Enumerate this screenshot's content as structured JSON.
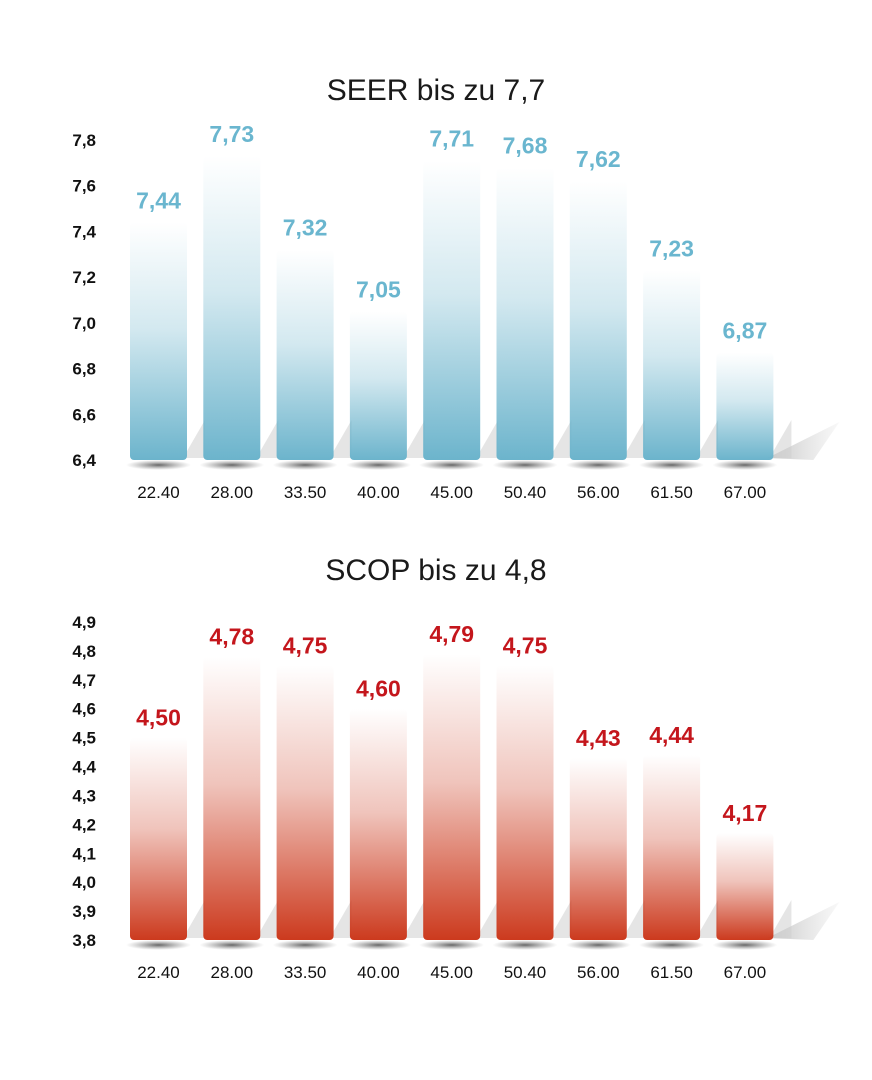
{
  "chart_data": [
    {
      "type": "bar",
      "title": "SEER bis zu 7,7",
      "categories": [
        "22.40",
        "28.00",
        "33.50",
        "40.00",
        "45.00",
        "50.40",
        "56.00",
        "61.50",
        "67.00"
      ],
      "values": [
        7.44,
        7.73,
        7.32,
        7.05,
        7.71,
        7.68,
        7.62,
        7.23,
        6.87
      ],
      "value_labels": [
        "7,44",
        "7,73",
        "7,32",
        "7,05",
        "7,71",
        "7,68",
        "7,62",
        "7,23",
        "6,87"
      ],
      "yticks": [
        6.4,
        6.6,
        6.8,
        7.0,
        7.2,
        7.4,
        7.6,
        7.8
      ],
      "ytick_labels": [
        "6,4",
        "6,6",
        "6,8",
        "7,0",
        "7,2",
        "7,4",
        "7,6",
        "7,8"
      ],
      "ylim": [
        6.4,
        7.8
      ],
      "xlabel": "",
      "ylabel": "",
      "grid": false,
      "color": "#6cb4cc",
      "label_color": "#6ab6cf"
    },
    {
      "type": "bar",
      "title": "SCOP bis zu 4,8",
      "categories": [
        "22.40",
        "28.00",
        "33.50",
        "40.00",
        "45.00",
        "50.40",
        "56.00",
        "61.50",
        "67.00"
      ],
      "values": [
        4.5,
        4.78,
        4.75,
        4.6,
        4.79,
        4.75,
        4.43,
        4.44,
        4.17
      ],
      "value_labels": [
        "4,50",
        "4,78",
        "4,75",
        "4,60",
        "4,79",
        "4,75",
        "4,43",
        "4,44",
        "4,17"
      ],
      "yticks": [
        3.8,
        3.9,
        4.0,
        4.1,
        4.2,
        4.3,
        4.4,
        4.5,
        4.6,
        4.7,
        4.8,
        4.9
      ],
      "ytick_labels": [
        "3,8",
        "3,9",
        "4,0",
        "4,1",
        "4,2",
        "4,3",
        "4,4",
        "4,5",
        "4,6",
        "4,7",
        "4,8",
        "4,9"
      ],
      "ylim": [
        3.8,
        4.9
      ],
      "xlabel": "",
      "ylabel": "",
      "grid": false,
      "color": "#cc3a1e",
      "label_color": "#c4161c"
    }
  ]
}
